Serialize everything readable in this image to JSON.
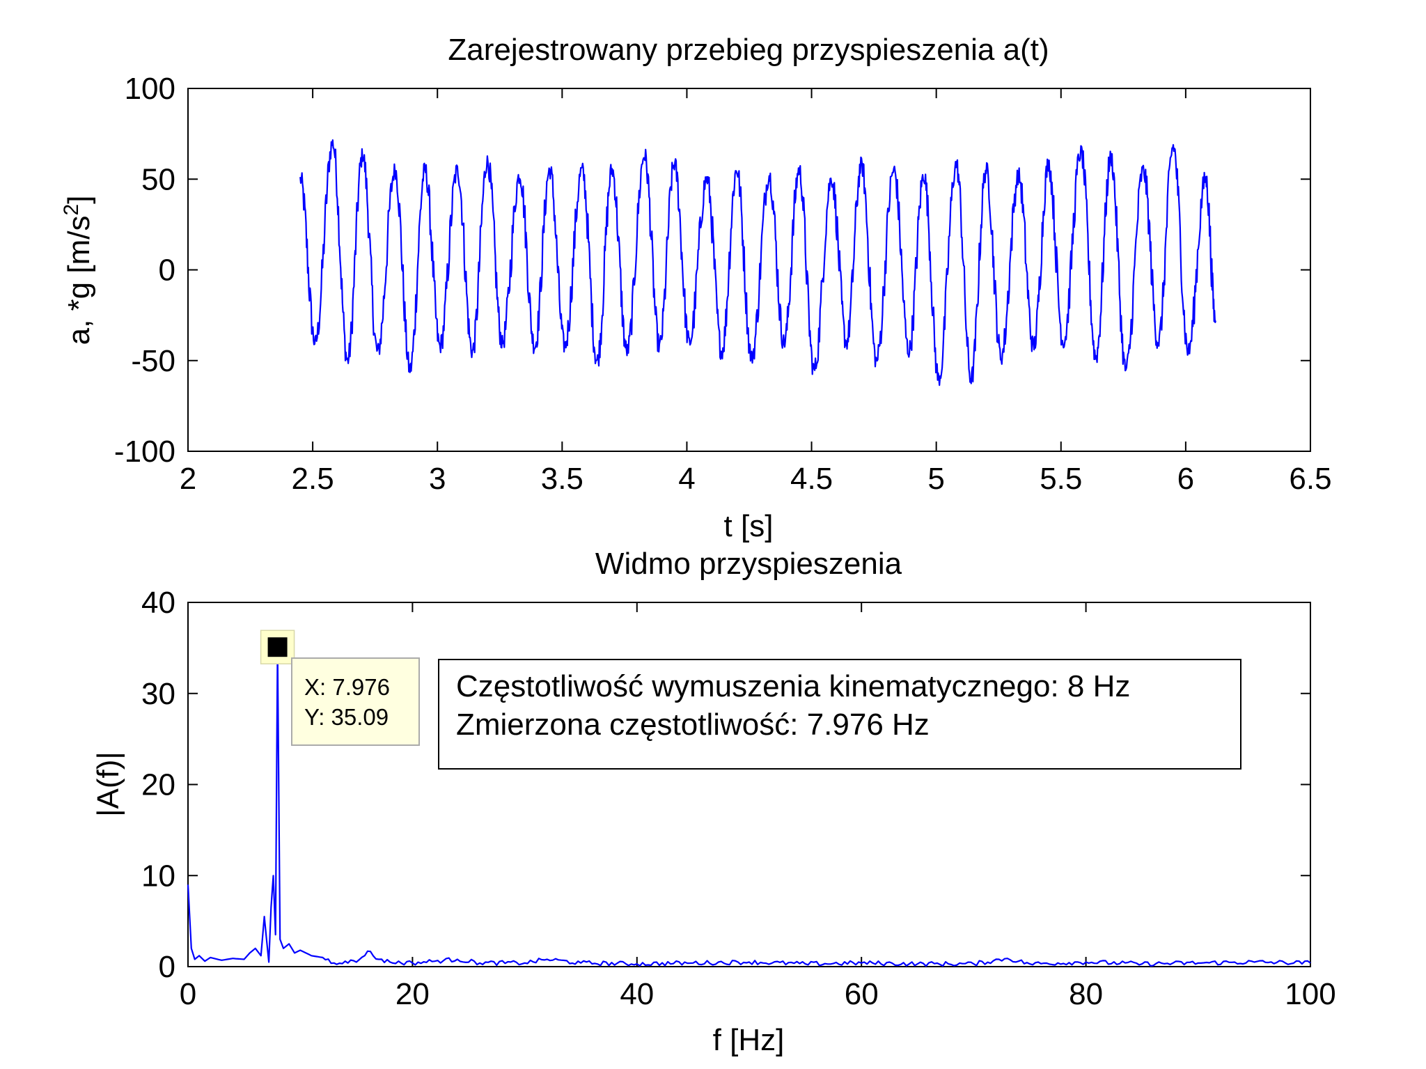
{
  "chart_data": [
    {
      "type": "line",
      "title": "Zarejestrowany przebieg przyspieszenia a(t)",
      "xlabel": "t [s]",
      "ylabel": "a, *g [m/s2]",
      "ylabel_main": "a, *g [m/s",
      "ylabel_sup": "2",
      "ylabel_end": "]",
      "xlim": [
        2,
        6.5
      ],
      "ylim": [
        -100,
        100
      ],
      "xticks": [
        "2",
        "2.5",
        "3",
        "3.5",
        "4",
        "4.5",
        "5",
        "5.5",
        "6",
        "6.5"
      ],
      "yticks": [
        "100",
        "50",
        "0",
        "-50",
        "-100"
      ],
      "color": "#0000ff",
      "series": [
        {
          "t_start": 2.45,
          "t_end": 6.12,
          "dominant_frequency_hz": 7.976,
          "x": [
            2.45,
            2.51,
            2.58,
            2.64,
            2.7,
            2.76,
            2.83,
            2.89,
            2.95,
            3.01,
            3.08,
            3.14,
            3.2,
            3.26,
            3.33,
            3.39,
            3.45,
            3.51,
            3.58,
            3.64,
            3.7,
            3.76,
            3.83,
            3.89,
            3.95,
            4.01,
            4.08,
            4.14,
            4.2,
            4.26,
            4.33,
            4.39,
            4.45,
            4.51,
            4.58,
            4.64,
            4.7,
            4.76,
            4.83,
            4.89,
            4.95,
            5.01,
            5.08,
            5.14,
            5.2,
            5.26,
            5.33,
            5.39,
            5.45,
            5.51,
            5.58,
            5.64,
            5.7,
            5.76,
            5.83,
            5.89,
            5.95,
            6.01,
            6.08,
            6.12
          ],
          "y": [
            50,
            -40,
            70,
            -50,
            63,
            -45,
            55,
            -55,
            55,
            -42,
            55,
            -45,
            60,
            -40,
            52,
            -42,
            55,
            -42,
            55,
            -50,
            55,
            -45,
            63,
            -42,
            58,
            -40,
            50,
            -45,
            55,
            -48,
            52,
            -40,
            55,
            -55,
            50,
            -40,
            58,
            -50,
            55,
            -45,
            52,
            -60,
            58,
            -60,
            55,
            -48,
            52,
            -42,
            58,
            -40,
            65,
            -48,
            62,
            -55,
            55,
            -40,
            68,
            -45,
            50,
            -28
          ]
        }
      ]
    },
    {
      "type": "line",
      "title": "Widmo przyspieszenia",
      "xlabel": "f [Hz]",
      "ylabel": "|A(f)|",
      "xlim": [
        0,
        100
      ],
      "ylim": [
        0,
        40
      ],
      "xticks": [
        "0",
        "20",
        "40",
        "60",
        "80",
        "100"
      ],
      "yticks": [
        "40",
        "30",
        "20",
        "10",
        "0"
      ],
      "color": "#0000ff",
      "series": [
        {
          "x": [
            0,
            0.3,
            0.6,
            1.0,
            1.5,
            2.0,
            3.0,
            4.0,
            5.0,
            5.5,
            6.0,
            6.5,
            6.8,
            7.0,
            7.2,
            7.4,
            7.6,
            7.8,
            7.976,
            8.2,
            8.5,
            9.0,
            9.5,
            10.0,
            11.0,
            12.0,
            13.0,
            14.0,
            15.0,
            16.0,
            17.0,
            18.0,
            20.0,
            22.0,
            24.0,
            26.0,
            30.0,
            32.0,
            35.0,
            40.0,
            45.0,
            50.0,
            55.0,
            60.0,
            65.0,
            70.0,
            73.0,
            75.0,
            80.0,
            85.0,
            90.0,
            95.0,
            100.0
          ],
          "y": [
            9.0,
            2.0,
            0.8,
            1.2,
            0.6,
            1.0,
            0.7,
            0.9,
            0.8,
            1.5,
            2.0,
            1.2,
            5.5,
            3.0,
            0.5,
            6.5,
            10.0,
            3.5,
            35.09,
            3.0,
            2.0,
            2.5,
            1.5,
            1.8,
            1.2,
            1.0,
            0.4,
            0.6,
            0.5,
            1.7,
            0.8,
            0.5,
            0.4,
            0.6,
            0.8,
            0.4,
            0.4,
            0.8,
            0.4,
            0.3,
            0.4,
            0.5,
            0.3,
            0.4,
            0.3,
            0.3,
            0.9,
            0.3,
            0.5,
            0.3,
            0.4,
            0.5,
            0.4
          ]
        }
      ],
      "datatip": {
        "x": 7.976,
        "y": 35.09,
        "x_text": "X: 7.976",
        "y_text": "Y: 35.09"
      },
      "annotation": {
        "line1": "Częstotliwość wymuszenia kinematycznego: 8 Hz",
        "line2": "Zmierzona częstotliwość: 7.976 Hz"
      }
    }
  ]
}
